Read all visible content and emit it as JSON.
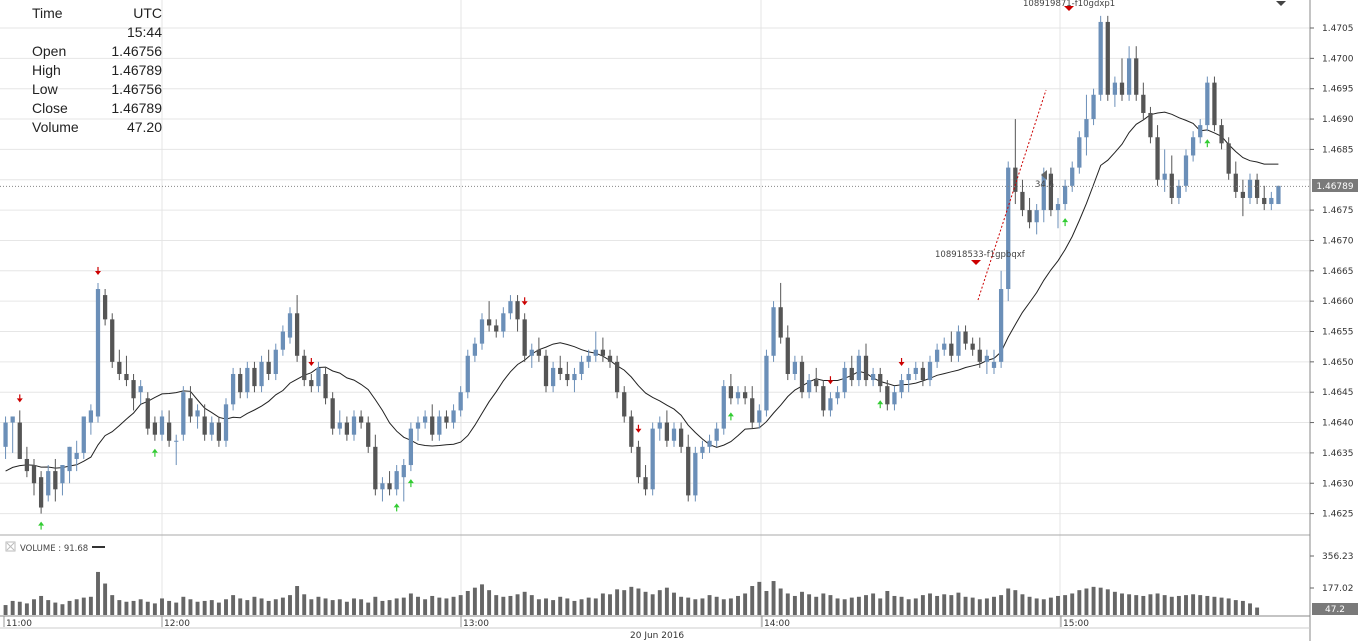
{
  "ohlc_panel": {
    "rows": [
      {
        "label": "Time",
        "value": "UTC 15:44"
      },
      {
        "label": "Open",
        "value": "1.46756"
      },
      {
        "label": "High",
        "value": "1.46789"
      },
      {
        "label": "Low",
        "value": "1.46756"
      },
      {
        "label": "Close",
        "value": "1.46789"
      },
      {
        "label": "Volume",
        "value": "47.20"
      }
    ]
  },
  "price_axis": {
    "ticks": [
      "1.4705",
      "1.4700",
      "1.4695",
      "1.4690",
      "1.4685",
      "1.4675",
      "1.4670",
      "1.4665",
      "1.4660",
      "1.4655",
      "1.4650",
      "1.4645",
      "1.4640",
      "1.4635",
      "1.4630",
      "1.4625"
    ],
    "current_price_label": "1.46789"
  },
  "volume_panel": {
    "legend": "VOLUME : 91.68",
    "axis_ticks": [
      "356.23",
      "177.02"
    ],
    "current_label": "47.2"
  },
  "time_axis": {
    "labels": [
      "11:00",
      "12:00",
      "13:00",
      "14:00",
      "15:00"
    ],
    "date_label": "20 Jun 2016"
  },
  "order_labels": [
    {
      "text": "108918533-f1gpbqxf"
    },
    {
      "text": "108919871-f10gdxp1"
    },
    {
      "text": "34.6"
    }
  ],
  "colors": {
    "bull": "#6b8fb8",
    "bear": "#555555",
    "up_arrow": "#33cc33",
    "down_arrow": "#cc0000",
    "grid": "#e6e6e6"
  },
  "chart_data": {
    "type": "candlestick",
    "ylim": [
      1.4622,
      1.4708
    ],
    "price_line": 1.46789,
    "candles": [
      [
        1.4636,
        1.4641,
        1.4634,
        1.464
      ],
      [
        1.464,
        1.4641,
        1.4635,
        1.4641
      ],
      [
        1.464,
        1.4642,
        1.4634,
        1.4634
      ],
      [
        1.4634,
        1.4636,
        1.4631,
        1.4632
      ],
      [
        1.4633,
        1.4634,
        1.4628,
        1.463
      ],
      [
        1.4631,
        1.4632,
        1.4625,
        1.4626
      ],
      [
        1.4628,
        1.4633,
        1.4627,
        1.4632
      ],
      [
        1.4632,
        1.4634,
        1.4627,
        1.4629
      ],
      [
        1.463,
        1.4633,
        1.4628,
        1.4633
      ],
      [
        1.4632,
        1.4636,
        1.463,
        1.4636
      ],
      [
        1.4634,
        1.4637,
        1.4632,
        1.4635
      ],
      [
        1.4635,
        1.4641,
        1.4634,
        1.4641
      ],
      [
        1.464,
        1.4643,
        1.4638,
        1.4642
      ],
      [
        1.4641,
        1.4663,
        1.464,
        1.4662
      ],
      [
        1.4661,
        1.4662,
        1.4656,
        1.4657
      ],
      [
        1.4657,
        1.4658,
        1.4649,
        1.465
      ],
      [
        1.465,
        1.4652,
        1.4647,
        1.4648
      ],
      [
        1.4648,
        1.4651,
        1.4646,
        1.4647
      ],
      [
        1.4647,
        1.4648,
        1.4642,
        1.4644
      ],
      [
        1.4645,
        1.4647,
        1.4643,
        1.4646
      ],
      [
        1.4644,
        1.4645,
        1.4638,
        1.4639
      ],
      [
        1.464,
        1.4641,
        1.4637,
        1.4638
      ],
      [
        1.4638,
        1.4642,
        1.4637,
        1.4641
      ],
      [
        1.464,
        1.4642,
        1.4636,
        1.4637
      ],
      [
        1.4637,
        1.4638,
        1.4633,
        1.4637
      ],
      [
        1.4638,
        1.4646,
        1.4637,
        1.4645
      ],
      [
        1.4644,
        1.4646,
        1.464,
        1.4641
      ],
      [
        1.4641,
        1.4643,
        1.4639,
        1.4642
      ],
      [
        1.4641,
        1.4643,
        1.4637,
        1.4638
      ],
      [
        1.4638,
        1.4641,
        1.4637,
        1.464
      ],
      [
        1.464,
        1.4641,
        1.4636,
        1.4637
      ],
      [
        1.4637,
        1.4644,
        1.4636,
        1.4643
      ],
      [
        1.4643,
        1.4649,
        1.4642,
        1.4648
      ],
      [
        1.4648,
        1.4649,
        1.4644,
        1.4645
      ],
      [
        1.4645,
        1.465,
        1.4644,
        1.4649
      ],
      [
        1.4649,
        1.465,
        1.4645,
        1.4646
      ],
      [
        1.4646,
        1.4651,
        1.4645,
        1.465
      ],
      [
        1.465,
        1.4652,
        1.4647,
        1.4648
      ],
      [
        1.4648,
        1.4653,
        1.4647,
        1.4652
      ],
      [
        1.4652,
        1.4656,
        1.4651,
        1.4655
      ],
      [
        1.4654,
        1.4659,
        1.4653,
        1.4658
      ],
      [
        1.4658,
        1.4661,
        1.465,
        1.4651
      ],
      [
        1.4651,
        1.4652,
        1.4646,
        1.4647
      ],
      [
        1.4647,
        1.4648,
        1.4645,
        1.4646
      ],
      [
        1.4646,
        1.465,
        1.4645,
        1.4649
      ],
      [
        1.4648,
        1.4649,
        1.4643,
        1.4644
      ],
      [
        1.4644,
        1.4645,
        1.4638,
        1.4639
      ],
      [
        1.4639,
        1.4642,
        1.4638,
        1.464
      ],
      [
        1.464,
        1.4641,
        1.4637,
        1.4638
      ],
      [
        1.4638,
        1.4642,
        1.4637,
        1.4641
      ],
      [
        1.4641,
        1.4642,
        1.4639,
        1.464
      ],
      [
        1.464,
        1.4641,
        1.4635,
        1.4636
      ],
      [
        1.4636,
        1.4638,
        1.4628,
        1.4629
      ],
      [
        1.4629,
        1.4631,
        1.4627,
        1.463
      ],
      [
        1.463,
        1.4632,
        1.4628,
        1.4629
      ],
      [
        1.4629,
        1.4633,
        1.4628,
        1.4632
      ],
      [
        1.4631,
        1.4634,
        1.4627,
        1.4633
      ],
      [
        1.4633,
        1.464,
        1.4632,
        1.4639
      ],
      [
        1.4639,
        1.4641,
        1.4637,
        1.464
      ],
      [
        1.464,
        1.4642,
        1.4639,
        1.4641
      ],
      [
        1.4641,
        1.4643,
        1.4637,
        1.4638
      ],
      [
        1.4638,
        1.4642,
        1.4637,
        1.4641
      ],
      [
        1.4641,
        1.4642,
        1.4639,
        1.464
      ],
      [
        1.464,
        1.4643,
        1.4639,
        1.4642
      ],
      [
        1.4642,
        1.4646,
        1.4641,
        1.4645
      ],
      [
        1.4645,
        1.4652,
        1.4644,
        1.4651
      ],
      [
        1.4651,
        1.4654,
        1.465,
        1.4653
      ],
      [
        1.4653,
        1.4658,
        1.4652,
        1.4657
      ],
      [
        1.4657,
        1.466,
        1.4655,
        1.4656
      ],
      [
        1.4656,
        1.4657,
        1.4654,
        1.4655
      ],
      [
        1.4655,
        1.4659,
        1.4654,
        1.4658
      ],
      [
        1.4658,
        1.4661,
        1.4657,
        1.466
      ],
      [
        1.466,
        1.4661,
        1.4655,
        1.4657
      ],
      [
        1.4657,
        1.4658,
        1.465,
        1.4651
      ],
      [
        1.4651,
        1.4653,
        1.4649,
        1.4652
      ],
      [
        1.4652,
        1.4654,
        1.465,
        1.4651
      ],
      [
        1.4651,
        1.4652,
        1.4645,
        1.4646
      ],
      [
        1.4646,
        1.465,
        1.4645,
        1.4649
      ],
      [
        1.4649,
        1.4651,
        1.4647,
        1.4648
      ],
      [
        1.4648,
        1.465,
        1.4646,
        1.4647
      ],
      [
        1.4647,
        1.4649,
        1.4645,
        1.4648
      ],
      [
        1.4648,
        1.4651,
        1.4647,
        1.465
      ],
      [
        1.465,
        1.4652,
        1.4649,
        1.4651
      ],
      [
        1.4651,
        1.4655,
        1.465,
        1.4652
      ],
      [
        1.4652,
        1.4654,
        1.465,
        1.4651
      ],
      [
        1.4651,
        1.4652,
        1.4649,
        1.465
      ],
      [
        1.465,
        1.4651,
        1.4644,
        1.4645
      ],
      [
        1.4645,
        1.4646,
        1.464,
        1.4641
      ],
      [
        1.4641,
        1.4642,
        1.4635,
        1.4636
      ],
      [
        1.4636,
        1.4637,
        1.463,
        1.4631
      ],
      [
        1.4631,
        1.4633,
        1.4628,
        1.4629
      ],
      [
        1.4629,
        1.464,
        1.4628,
        1.4639
      ],
      [
        1.4639,
        1.4641,
        1.4637,
        1.464
      ],
      [
        1.464,
        1.4642,
        1.4636,
        1.4637
      ],
      [
        1.4637,
        1.464,
        1.4636,
        1.4639
      ],
      [
        1.4639,
        1.464,
        1.4635,
        1.4636
      ],
      [
        1.4636,
        1.4638,
        1.4627,
        1.4628
      ],
      [
        1.4628,
        1.4636,
        1.4627,
        1.4635
      ],
      [
        1.4635,
        1.4637,
        1.4634,
        1.4636
      ],
      [
        1.4636,
        1.4638,
        1.4635,
        1.4637
      ],
      [
        1.4637,
        1.464,
        1.4636,
        1.4639
      ],
      [
        1.4639,
        1.4647,
        1.4638,
        1.4646
      ],
      [
        1.4646,
        1.4648,
        1.4643,
        1.4644
      ],
      [
        1.4644,
        1.4646,
        1.4643,
        1.4645
      ],
      [
        1.4645,
        1.4646,
        1.4643,
        1.4644
      ],
      [
        1.4644,
        1.4646,
        1.4639,
        1.464
      ],
      [
        1.464,
        1.4643,
        1.4639,
        1.4642
      ],
      [
        1.4642,
        1.4652,
        1.4641,
        1.4651
      ],
      [
        1.4651,
        1.466,
        1.465,
        1.4659
      ],
      [
        1.4659,
        1.4663,
        1.4653,
        1.4654
      ],
      [
        1.4654,
        1.4656,
        1.4647,
        1.4648
      ],
      [
        1.4648,
        1.4651,
        1.4647,
        1.465
      ],
      [
        1.465,
        1.4651,
        1.4644,
        1.4645
      ],
      [
        1.4645,
        1.4648,
        1.4644,
        1.4647
      ],
      [
        1.4647,
        1.4649,
        1.4645,
        1.4646
      ],
      [
        1.4646,
        1.4647,
        1.4641,
        1.4642
      ],
      [
        1.4642,
        1.4645,
        1.4641,
        1.4644
      ],
      [
        1.4644,
        1.4646,
        1.4643,
        1.4645
      ],
      [
        1.4645,
        1.465,
        1.4644,
        1.4649
      ],
      [
        1.4649,
        1.4651,
        1.4646,
        1.4647
      ],
      [
        1.4647,
        1.4652,
        1.4646,
        1.4651
      ],
      [
        1.4651,
        1.4653,
        1.4646,
        1.4647
      ],
      [
        1.4647,
        1.4649,
        1.4646,
        1.4648
      ],
      [
        1.4648,
        1.4649,
        1.4645,
        1.4646
      ],
      [
        1.4646,
        1.4647,
        1.4642,
        1.4643
      ],
      [
        1.4643,
        1.4646,
        1.4642,
        1.4645
      ],
      [
        1.4645,
        1.4648,
        1.4644,
        1.4647
      ],
      [
        1.4647,
        1.4649,
        1.4645,
        1.4648
      ],
      [
        1.4648,
        1.465,
        1.4647,
        1.4649
      ],
      [
        1.4649,
        1.465,
        1.4646,
        1.4647
      ],
      [
        1.4647,
        1.4651,
        1.4646,
        1.465
      ],
      [
        1.465,
        1.4653,
        1.4649,
        1.4652
      ],
      [
        1.4652,
        1.4654,
        1.4651,
        1.4653
      ],
      [
        1.4653,
        1.4655,
        1.465,
        1.4651
      ],
      [
        1.4651,
        1.4656,
        1.465,
        1.4655
      ],
      [
        1.4655,
        1.4656,
        1.4652,
        1.4653
      ],
      [
        1.4653,
        1.4654,
        1.4651,
        1.4652
      ],
      [
        1.4652,
        1.4654,
        1.4649,
        1.465
      ],
      [
        1.465,
        1.4652,
        1.4648,
        1.4651
      ],
      [
        1.4649,
        1.4652,
        1.4648,
        1.465
      ],
      [
        1.465,
        1.4665,
        1.4649,
        1.4662
      ],
      [
        1.4662,
        1.4683,
        1.466,
        1.4682
      ],
      [
        1.4682,
        1.469,
        1.4676,
        1.4678
      ],
      [
        1.4678,
        1.468,
        1.4674,
        1.4675
      ],
      [
        1.4675,
        1.4677,
        1.4672,
        1.4673
      ],
      [
        1.4673,
        1.4676,
        1.4671,
        1.4675
      ],
      [
        1.4675,
        1.4682,
        1.4673,
        1.4681
      ],
      [
        1.4681,
        1.4682,
        1.4674,
        1.4675
      ],
      [
        1.4675,
        1.4677,
        1.4672,
        1.4676
      ],
      [
        1.4676,
        1.468,
        1.4675,
        1.4679
      ],
      [
        1.4679,
        1.4683,
        1.4678,
        1.4682
      ],
      [
        1.4682,
        1.4688,
        1.4681,
        1.4687
      ],
      [
        1.4687,
        1.4694,
        1.4684,
        1.469
      ],
      [
        1.469,
        1.4695,
        1.4689,
        1.4694
      ],
      [
        1.4694,
        1.4707,
        1.4693,
        1.4706
      ],
      [
        1.4706,
        1.4707,
        1.4693,
        1.4694
      ],
      [
        1.4694,
        1.4697,
        1.4692,
        1.4696
      ],
      [
        1.4696,
        1.47,
        1.4693,
        1.4694
      ],
      [
        1.4694,
        1.4702,
        1.4693,
        1.47
      ],
      [
        1.47,
        1.4702,
        1.4693,
        1.4694
      ],
      [
        1.4694,
        1.4696,
        1.469,
        1.4691
      ],
      [
        1.4691,
        1.4692,
        1.4686,
        1.4687
      ],
      [
        1.4687,
        1.4689,
        1.4679,
        1.468
      ],
      [
        1.468,
        1.4685,
        1.4678,
        1.4681
      ],
      [
        1.4681,
        1.4684,
        1.4676,
        1.4677
      ],
      [
        1.4677,
        1.468,
        1.4676,
        1.4679
      ],
      [
        1.4679,
        1.4685,
        1.4678,
        1.4684
      ],
      [
        1.4684,
        1.4688,
        1.4683,
        1.4687
      ],
      [
        1.4687,
        1.469,
        1.4686,
        1.4689
      ],
      [
        1.4689,
        1.4697,
        1.4688,
        1.4696
      ],
      [
        1.4696,
        1.4697,
        1.4688,
        1.4689
      ],
      [
        1.4689,
        1.469,
        1.4685,
        1.4686
      ],
      [
        1.4686,
        1.4687,
        1.468,
        1.4681
      ],
      [
        1.4681,
        1.4683,
        1.4677,
        1.4678
      ],
      [
        1.4678,
        1.468,
        1.4674,
        1.4677
      ],
      [
        1.4677,
        1.4681,
        1.4676,
        1.468
      ],
      [
        1.468,
        1.4681,
        1.4676,
        1.4677
      ],
      [
        1.4677,
        1.4679,
        1.4675,
        1.4676
      ],
      [
        1.4676,
        1.4678,
        1.4675,
        1.4677
      ],
      [
        1.4676,
        1.4679,
        1.4676,
        1.4679
      ]
    ],
    "volumes": [
      60,
      85,
      80,
      70,
      95,
      115,
      90,
      75,
      65,
      85,
      95,
      105,
      110,
      260,
      190,
      120,
      90,
      80,
      85,
      95,
      80,
      70,
      100,
      85,
      75,
      110,
      95,
      80,
      85,
      90,
      75,
      95,
      120,
      100,
      90,
      110,
      100,
      85,
      95,
      105,
      120,
      175,
      125,
      95,
      110,
      100,
      90,
      95,
      80,
      100,
      95,
      75,
      110,
      85,
      90,
      100,
      105,
      130,
      110,
      95,
      115,
      105,
      100,
      110,
      120,
      145,
      165,
      185,
      150,
      120,
      110,
      115,
      125,
      140,
      120,
      95,
      100,
      90,
      110,
      100,
      85,
      95,
      105,
      100,
      130,
      125,
      155,
      150,
      170,
      160,
      140,
      125,
      150,
      165,
      135,
      110,
      105,
      95,
      100,
      120,
      110,
      95,
      100,
      115,
      130,
      175,
      200,
      145,
      205,
      160,
      130,
      115,
      140,
      125,
      110,
      130,
      120,
      100,
      95,
      105,
      110,
      120,
      130,
      100,
      145,
      115,
      110,
      95,
      100,
      120,
      130,
      115,
      125,
      120,
      135,
      110,
      105,
      95,
      100,
      110,
      120,
      160,
      150,
      125,
      110,
      100,
      95,
      105,
      115,
      120,
      130,
      150,
      160,
      170,
      165,
      155,
      140,
      130,
      125,
      120,
      115,
      125,
      130,
      120,
      110,
      115,
      120,
      125,
      120,
      115,
      110,
      105,
      100,
      90,
      85,
      70,
      45
    ],
    "moving_average_start": 1.4632
  }
}
